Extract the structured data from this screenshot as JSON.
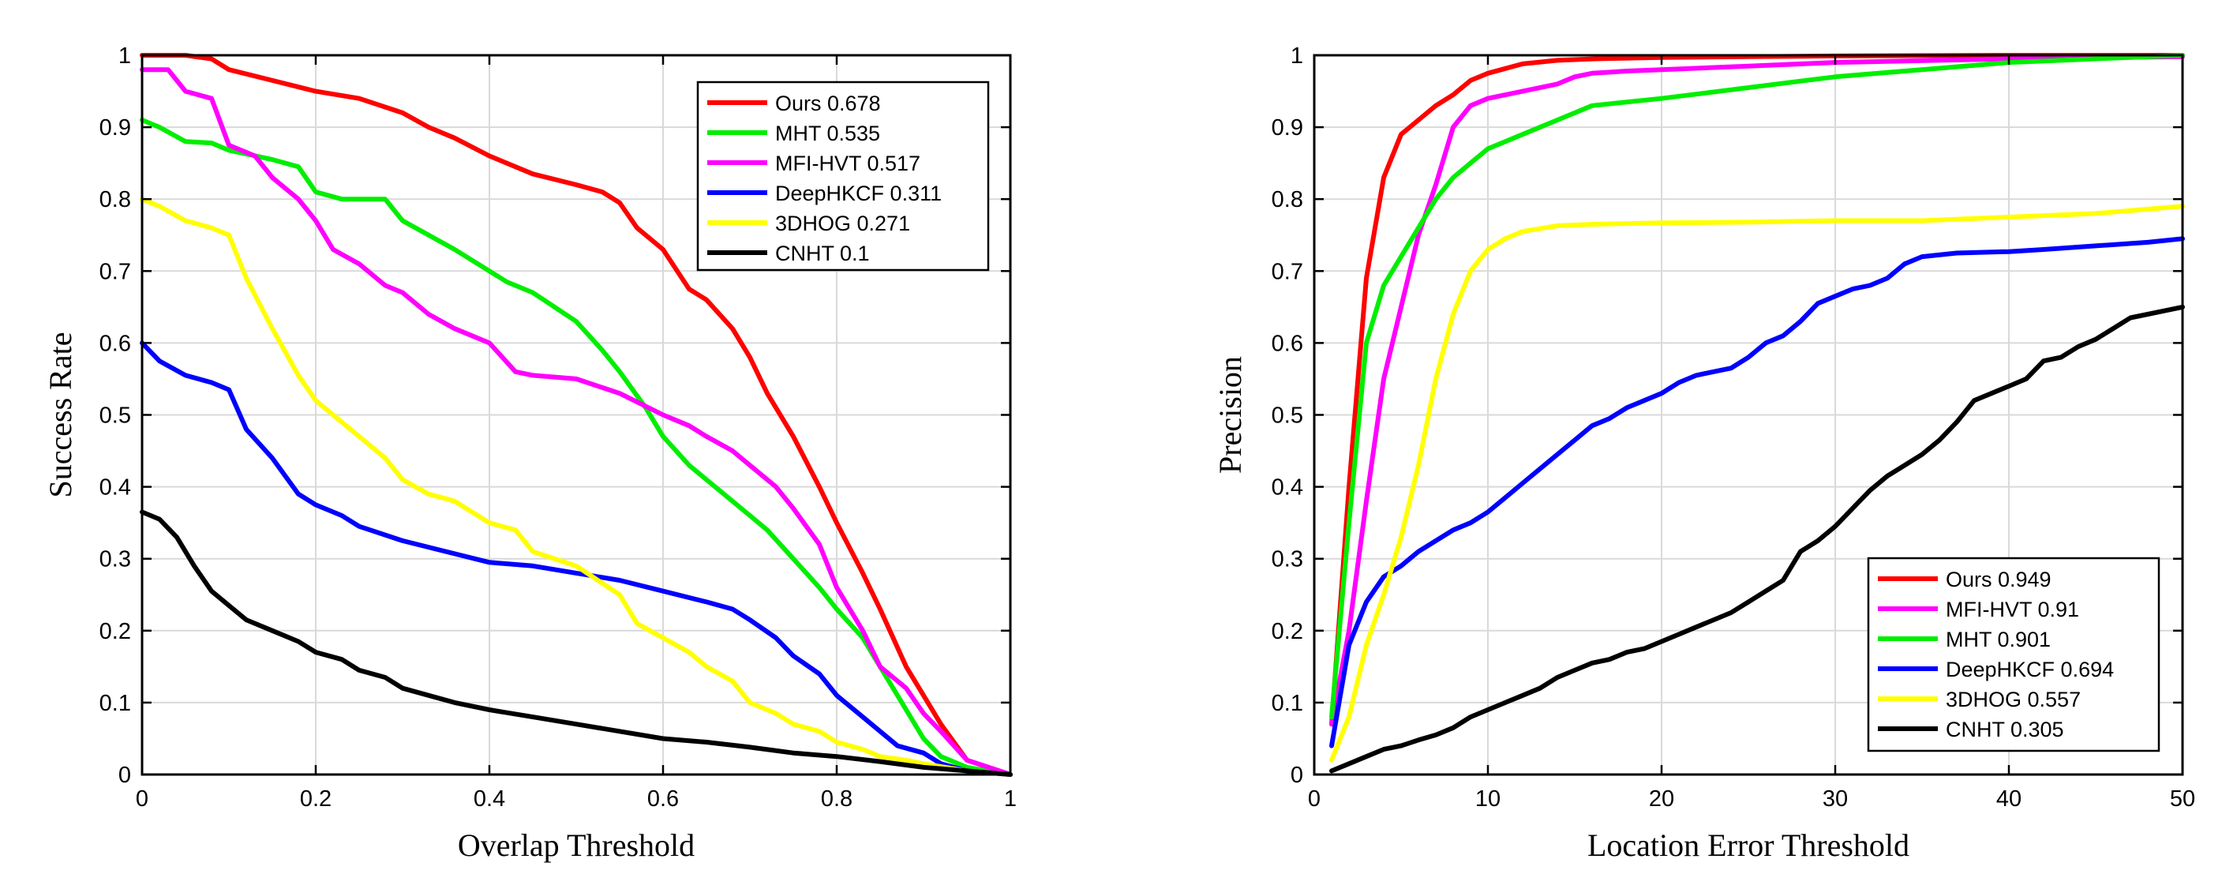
{
  "chart_data": [
    {
      "type": "line",
      "xlabel": "Overlap Threshold",
      "ylabel": "Success Rate",
      "xlim": [
        0,
        1
      ],
      "ylim": [
        0,
        1
      ],
      "xticks": [
        0,
        0.2,
        0.4,
        0.6,
        0.8,
        1
      ],
      "xtick_labels": [
        "0",
        "0.2",
        "0.4",
        "0.6",
        "0.8",
        "1"
      ],
      "yticks": [
        0,
        0.1,
        0.2,
        0.3,
        0.4,
        0.5,
        0.6,
        0.7,
        0.8,
        0.9,
        1
      ],
      "ytick_labels": [
        "0",
        "0.1",
        "0.2",
        "0.3",
        "0.4",
        "0.5",
        "0.6",
        "0.7",
        "0.8",
        "0.9",
        "1"
      ],
      "grid": true,
      "legend_position": "top-right",
      "series": [
        {
          "name": "Ours",
          "score": "0.678",
          "color": "#ff0000",
          "x": [
            0,
            0.05,
            0.08,
            0.1,
            0.15,
            0.2,
            0.25,
            0.3,
            0.33,
            0.36,
            0.4,
            0.45,
            0.5,
            0.53,
            0.55,
            0.57,
            0.6,
            0.63,
            0.65,
            0.68,
            0.7,
            0.72,
            0.75,
            0.78,
            0.8,
            0.83,
            0.85,
            0.88,
            0.9,
            0.92,
            0.95,
            1.0
          ],
          "y": [
            1.0,
            1.0,
            0.995,
            0.98,
            0.965,
            0.95,
            0.94,
            0.92,
            0.9,
            0.885,
            0.86,
            0.835,
            0.82,
            0.81,
            0.795,
            0.76,
            0.73,
            0.675,
            0.66,
            0.62,
            0.58,
            0.53,
            0.47,
            0.4,
            0.35,
            0.28,
            0.23,
            0.15,
            0.11,
            0.07,
            0.02,
            0.0
          ]
        },
        {
          "name": "MHT",
          "score": "0.535",
          "color": "#00ee00",
          "x": [
            0,
            0.02,
            0.05,
            0.08,
            0.1,
            0.15,
            0.18,
            0.2,
            0.23,
            0.25,
            0.28,
            0.3,
            0.33,
            0.36,
            0.4,
            0.42,
            0.45,
            0.5,
            0.53,
            0.55,
            0.58,
            0.6,
            0.63,
            0.65,
            0.68,
            0.7,
            0.72,
            0.75,
            0.78,
            0.8,
            0.83,
            0.85,
            0.88,
            0.9,
            0.92,
            0.95,
            1.0
          ],
          "y": [
            0.91,
            0.9,
            0.88,
            0.878,
            0.868,
            0.855,
            0.845,
            0.81,
            0.8,
            0.8,
            0.8,
            0.77,
            0.75,
            0.73,
            0.7,
            0.685,
            0.67,
            0.63,
            0.59,
            0.56,
            0.51,
            0.47,
            0.43,
            0.41,
            0.38,
            0.36,
            0.34,
            0.3,
            0.26,
            0.23,
            0.19,
            0.15,
            0.09,
            0.05,
            0.025,
            0.01,
            0.0
          ]
        },
        {
          "name": "MFI-HVT",
          "score": "0.517",
          "color": "#ff00ff",
          "x": [
            0,
            0.03,
            0.05,
            0.08,
            0.1,
            0.13,
            0.15,
            0.18,
            0.2,
            0.22,
            0.25,
            0.28,
            0.3,
            0.33,
            0.36,
            0.4,
            0.43,
            0.45,
            0.5,
            0.55,
            0.6,
            0.63,
            0.65,
            0.68,
            0.7,
            0.73,
            0.75,
            0.78,
            0.8,
            0.83,
            0.85,
            0.88,
            0.9,
            0.92,
            0.95,
            1.0
          ],
          "y": [
            0.98,
            0.98,
            0.95,
            0.94,
            0.875,
            0.86,
            0.83,
            0.8,
            0.77,
            0.73,
            0.71,
            0.68,
            0.67,
            0.64,
            0.62,
            0.6,
            0.56,
            0.555,
            0.55,
            0.53,
            0.5,
            0.485,
            0.47,
            0.45,
            0.43,
            0.4,
            0.37,
            0.32,
            0.26,
            0.2,
            0.15,
            0.12,
            0.085,
            0.06,
            0.02,
            0.0
          ]
        },
        {
          "name": "DeepHKCF",
          "score": "0.311",
          "color": "#0000ff",
          "x": [
            0,
            0.02,
            0.05,
            0.08,
            0.1,
            0.12,
            0.15,
            0.18,
            0.2,
            0.23,
            0.25,
            0.3,
            0.35,
            0.4,
            0.45,
            0.5,
            0.55,
            0.6,
            0.65,
            0.68,
            0.7,
            0.73,
            0.75,
            0.78,
            0.8,
            0.83,
            0.85,
            0.87,
            0.9,
            0.92,
            0.95,
            1.0
          ],
          "y": [
            0.6,
            0.575,
            0.555,
            0.545,
            0.535,
            0.48,
            0.44,
            0.39,
            0.375,
            0.36,
            0.345,
            0.325,
            0.31,
            0.295,
            0.29,
            0.28,
            0.27,
            0.255,
            0.24,
            0.23,
            0.215,
            0.19,
            0.165,
            0.14,
            0.11,
            0.08,
            0.06,
            0.04,
            0.03,
            0.015,
            0.005,
            0.0
          ]
        },
        {
          "name": "3DHOG",
          "score": "0.271",
          "color": "#ffff00",
          "x": [
            0,
            0.02,
            0.05,
            0.08,
            0.1,
            0.12,
            0.15,
            0.18,
            0.2,
            0.23,
            0.25,
            0.28,
            0.3,
            0.33,
            0.36,
            0.4,
            0.43,
            0.45,
            0.5,
            0.55,
            0.57,
            0.6,
            0.63,
            0.65,
            0.68,
            0.7,
            0.73,
            0.75,
            0.78,
            0.8,
            0.83,
            0.85,
            0.88,
            0.9,
            0.95,
            1.0
          ],
          "y": [
            0.8,
            0.79,
            0.77,
            0.76,
            0.75,
            0.69,
            0.62,
            0.555,
            0.52,
            0.49,
            0.47,
            0.44,
            0.41,
            0.39,
            0.38,
            0.35,
            0.34,
            0.31,
            0.29,
            0.25,
            0.21,
            0.19,
            0.17,
            0.15,
            0.13,
            0.1,
            0.085,
            0.07,
            0.06,
            0.045,
            0.035,
            0.025,
            0.02,
            0.015,
            0.005,
            0.0
          ]
        },
        {
          "name": "CNHT",
          "score": "0.1",
          "color": "#000000",
          "x": [
            0,
            0.02,
            0.04,
            0.06,
            0.08,
            0.1,
            0.12,
            0.15,
            0.18,
            0.2,
            0.23,
            0.25,
            0.28,
            0.3,
            0.33,
            0.36,
            0.4,
            0.45,
            0.5,
            0.55,
            0.6,
            0.65,
            0.7,
            0.75,
            0.8,
            0.85,
            0.9,
            0.95,
            1.0
          ],
          "y": [
            0.365,
            0.355,
            0.33,
            0.29,
            0.255,
            0.235,
            0.215,
            0.2,
            0.185,
            0.17,
            0.16,
            0.145,
            0.135,
            0.12,
            0.11,
            0.1,
            0.09,
            0.08,
            0.07,
            0.06,
            0.05,
            0.045,
            0.038,
            0.03,
            0.025,
            0.018,
            0.01,
            0.005,
            0.0
          ]
        }
      ]
    },
    {
      "type": "line",
      "xlabel": "Location Error Threshold",
      "ylabel": "Precision",
      "xlim": [
        0,
        50
      ],
      "ylim": [
        0,
        1
      ],
      "xticks": [
        0,
        10,
        20,
        30,
        40,
        50
      ],
      "xtick_labels": [
        "0",
        "10",
        "20",
        "30",
        "40",
        "50"
      ],
      "yticks": [
        0,
        0.1,
        0.2,
        0.3,
        0.4,
        0.5,
        0.6,
        0.7,
        0.8,
        0.9,
        1
      ],
      "ytick_labels": [
        "0",
        "0.1",
        "0.2",
        "0.3",
        "0.4",
        "0.5",
        "0.6",
        "0.7",
        "0.8",
        "0.9",
        "1"
      ],
      "grid": true,
      "legend_position": "bottom-right",
      "series": [
        {
          "name": "Ours",
          "score": "0.949",
          "color": "#ff0000",
          "x": [
            1,
            2,
            3,
            4,
            5,
            6,
            7,
            8,
            9,
            10,
            12,
            14,
            16,
            20,
            25,
            30,
            40,
            50
          ],
          "y": [
            0.07,
            0.4,
            0.69,
            0.83,
            0.89,
            0.91,
            0.93,
            0.945,
            0.965,
            0.975,
            0.988,
            0.993,
            0.995,
            0.997,
            0.998,
            0.999,
            1.0,
            1.0
          ]
        },
        {
          "name": "MFI-HVT",
          "score": "0.91",
          "color": "#ff00ff",
          "x": [
            1,
            2,
            3,
            4,
            5,
            6,
            7,
            8,
            9,
            10,
            12,
            14,
            15,
            16,
            18,
            20,
            25,
            30,
            40,
            50
          ],
          "y": [
            0.07,
            0.2,
            0.38,
            0.55,
            0.65,
            0.75,
            0.82,
            0.9,
            0.93,
            0.94,
            0.95,
            0.96,
            0.97,
            0.975,
            0.978,
            0.98,
            0.985,
            0.99,
            0.995,
            0.998
          ]
        },
        {
          "name": "MHT",
          "score": "0.901",
          "color": "#00ee00",
          "x": [
            1,
            2,
            3,
            4,
            5,
            6,
            7,
            8,
            9,
            10,
            11,
            12,
            14,
            16,
            20,
            25,
            30,
            35,
            40,
            50
          ],
          "y": [
            0.08,
            0.35,
            0.6,
            0.68,
            0.72,
            0.76,
            0.8,
            0.83,
            0.85,
            0.87,
            0.88,
            0.89,
            0.91,
            0.93,
            0.94,
            0.955,
            0.97,
            0.98,
            0.99,
            1.0
          ]
        },
        {
          "name": "DeepHKCF",
          "score": "0.694",
          "color": "#0000ff",
          "x": [
            1,
            2,
            3,
            4,
            5,
            6,
            7,
            8,
            9,
            10,
            11,
            12,
            13,
            14,
            15,
            16,
            17,
            18,
            19,
            20,
            21,
            22,
            23,
            24,
            25,
            26,
            27,
            28,
            29,
            30,
            31,
            32,
            33,
            34,
            35,
            37,
            40,
            42,
            45,
            48,
            50
          ],
          "y": [
            0.04,
            0.18,
            0.24,
            0.275,
            0.29,
            0.31,
            0.325,
            0.34,
            0.35,
            0.365,
            0.385,
            0.405,
            0.425,
            0.445,
            0.465,
            0.485,
            0.495,
            0.51,
            0.52,
            0.53,
            0.545,
            0.555,
            0.56,
            0.565,
            0.58,
            0.6,
            0.61,
            0.63,
            0.655,
            0.665,
            0.675,
            0.68,
            0.69,
            0.71,
            0.72,
            0.725,
            0.727,
            0.73,
            0.735,
            0.74,
            0.745
          ]
        },
        {
          "name": "3DHOG",
          "score": "0.557",
          "color": "#ffff00",
          "x": [
            1,
            2,
            3,
            4,
            5,
            6,
            7,
            8,
            9,
            10,
            11,
            12,
            14,
            16,
            20,
            25,
            30,
            35,
            40,
            45,
            50
          ],
          "y": [
            0.02,
            0.08,
            0.18,
            0.25,
            0.33,
            0.43,
            0.55,
            0.64,
            0.7,
            0.73,
            0.745,
            0.755,
            0.763,
            0.765,
            0.767,
            0.768,
            0.77,
            0.77,
            0.775,
            0.78,
            0.79
          ]
        },
        {
          "name": "CNHT",
          "score": "0.305",
          "color": "#000000",
          "x": [
            1,
            2,
            3,
            4,
            5,
            6,
            7,
            8,
            9,
            10,
            11,
            12,
            13,
            14,
            15,
            16,
            17,
            18,
            19,
            20,
            21,
            22,
            23,
            24,
            25,
            26,
            27,
            28,
            29,
            30,
            31,
            32,
            33,
            34,
            35,
            36,
            37,
            38,
            39,
            40,
            41,
            42,
            43,
            44,
            45,
            46,
            47,
            48,
            49,
            50
          ],
          "y": [
            0.005,
            0.015,
            0.025,
            0.035,
            0.04,
            0.048,
            0.055,
            0.065,
            0.08,
            0.09,
            0.1,
            0.11,
            0.12,
            0.135,
            0.145,
            0.155,
            0.16,
            0.17,
            0.175,
            0.185,
            0.195,
            0.205,
            0.215,
            0.225,
            0.24,
            0.255,
            0.27,
            0.31,
            0.325,
            0.345,
            0.37,
            0.395,
            0.415,
            0.43,
            0.445,
            0.465,
            0.49,
            0.52,
            0.53,
            0.54,
            0.55,
            0.575,
            0.58,
            0.595,
            0.605,
            0.62,
            0.635,
            0.64,
            0.645,
            0.65
          ]
        }
      ]
    }
  ]
}
